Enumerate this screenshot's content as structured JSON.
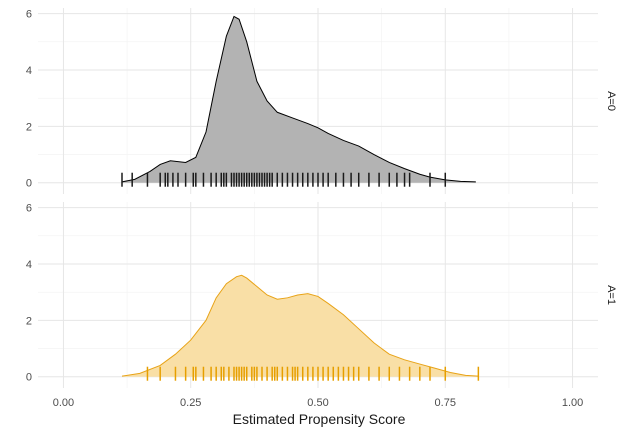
{
  "chart_data": {
    "type": "area",
    "title": "",
    "xlabel": "Estimated Propensity Score",
    "ylabel": "",
    "xlim": [
      -0.05,
      1.05
    ],
    "ylim": [
      -0.4,
      6.2
    ],
    "x_ticks": [
      0.0,
      0.25,
      0.5,
      0.75,
      1.0
    ],
    "x_tick_labels": [
      "0.00",
      "0.25",
      "0.50",
      "0.75",
      "1.00"
    ],
    "y_ticks": [
      0,
      2,
      4,
      6
    ],
    "y_tick_labels": [
      "0",
      "2",
      "4",
      "6"
    ],
    "grid": true,
    "legend": "none",
    "facets": [
      {
        "label": "A=0",
        "fill": "#b3b3b3",
        "line": "#000000",
        "rug_color": "#1a1a1a",
        "density": {
          "x": [
            0.115,
            0.14,
            0.17,
            0.19,
            0.21,
            0.24,
            0.26,
            0.28,
            0.3,
            0.32,
            0.335,
            0.345,
            0.36,
            0.38,
            0.4,
            0.42,
            0.45,
            0.48,
            0.5,
            0.52,
            0.55,
            0.58,
            0.61,
            0.64,
            0.67,
            0.7,
            0.72,
            0.75,
            0.78,
            0.81
          ],
          "y": [
            0.03,
            0.12,
            0.4,
            0.65,
            0.78,
            0.72,
            0.9,
            1.8,
            3.6,
            5.2,
            5.9,
            5.8,
            5.0,
            3.6,
            2.9,
            2.5,
            2.3,
            2.1,
            1.95,
            1.75,
            1.5,
            1.3,
            1.0,
            0.72,
            0.5,
            0.3,
            0.2,
            0.1,
            0.05,
            0.03
          ]
        },
        "rug": [
          0.115,
          0.135,
          0.165,
          0.19,
          0.2,
          0.205,
          0.215,
          0.225,
          0.24,
          0.255,
          0.26,
          0.275,
          0.29,
          0.3,
          0.31,
          0.315,
          0.32,
          0.33,
          0.335,
          0.34,
          0.345,
          0.35,
          0.355,
          0.36,
          0.365,
          0.37,
          0.375,
          0.38,
          0.385,
          0.39,
          0.395,
          0.4,
          0.405,
          0.41,
          0.42,
          0.43,
          0.44,
          0.45,
          0.46,
          0.47,
          0.48,
          0.49,
          0.5,
          0.51,
          0.52,
          0.535,
          0.55,
          0.565,
          0.58,
          0.6,
          0.62,
          0.64,
          0.655,
          0.67,
          0.68,
          0.72,
          0.75
        ]
      },
      {
        "label": "A=1",
        "fill": "#f9dfa6",
        "line": "#e8a317",
        "rug_color": "#e69f00",
        "density": {
          "x": [
            0.115,
            0.15,
            0.19,
            0.22,
            0.25,
            0.28,
            0.3,
            0.32,
            0.34,
            0.35,
            0.36,
            0.38,
            0.4,
            0.42,
            0.44,
            0.46,
            0.48,
            0.5,
            0.52,
            0.55,
            0.58,
            0.61,
            0.64,
            0.67,
            0.7,
            0.73,
            0.76,
            0.79,
            0.815
          ],
          "y": [
            0.02,
            0.12,
            0.4,
            0.8,
            1.3,
            2.0,
            2.8,
            3.3,
            3.55,
            3.6,
            3.5,
            3.2,
            2.9,
            2.75,
            2.8,
            2.9,
            2.95,
            2.85,
            2.6,
            2.2,
            1.7,
            1.2,
            0.8,
            0.6,
            0.45,
            0.3,
            0.15,
            0.05,
            0.02
          ]
        },
        "rug": [
          0.165,
          0.19,
          0.22,
          0.24,
          0.255,
          0.26,
          0.275,
          0.29,
          0.3,
          0.31,
          0.315,
          0.325,
          0.335,
          0.34,
          0.345,
          0.35,
          0.355,
          0.36,
          0.37,
          0.375,
          0.38,
          0.39,
          0.4,
          0.41,
          0.415,
          0.42,
          0.43,
          0.44,
          0.45,
          0.455,
          0.46,
          0.47,
          0.48,
          0.49,
          0.5,
          0.51,
          0.52,
          0.53,
          0.54,
          0.55,
          0.56,
          0.57,
          0.58,
          0.6,
          0.62,
          0.64,
          0.66,
          0.68,
          0.7,
          0.72,
          0.75,
          0.815
        ]
      }
    ]
  }
}
